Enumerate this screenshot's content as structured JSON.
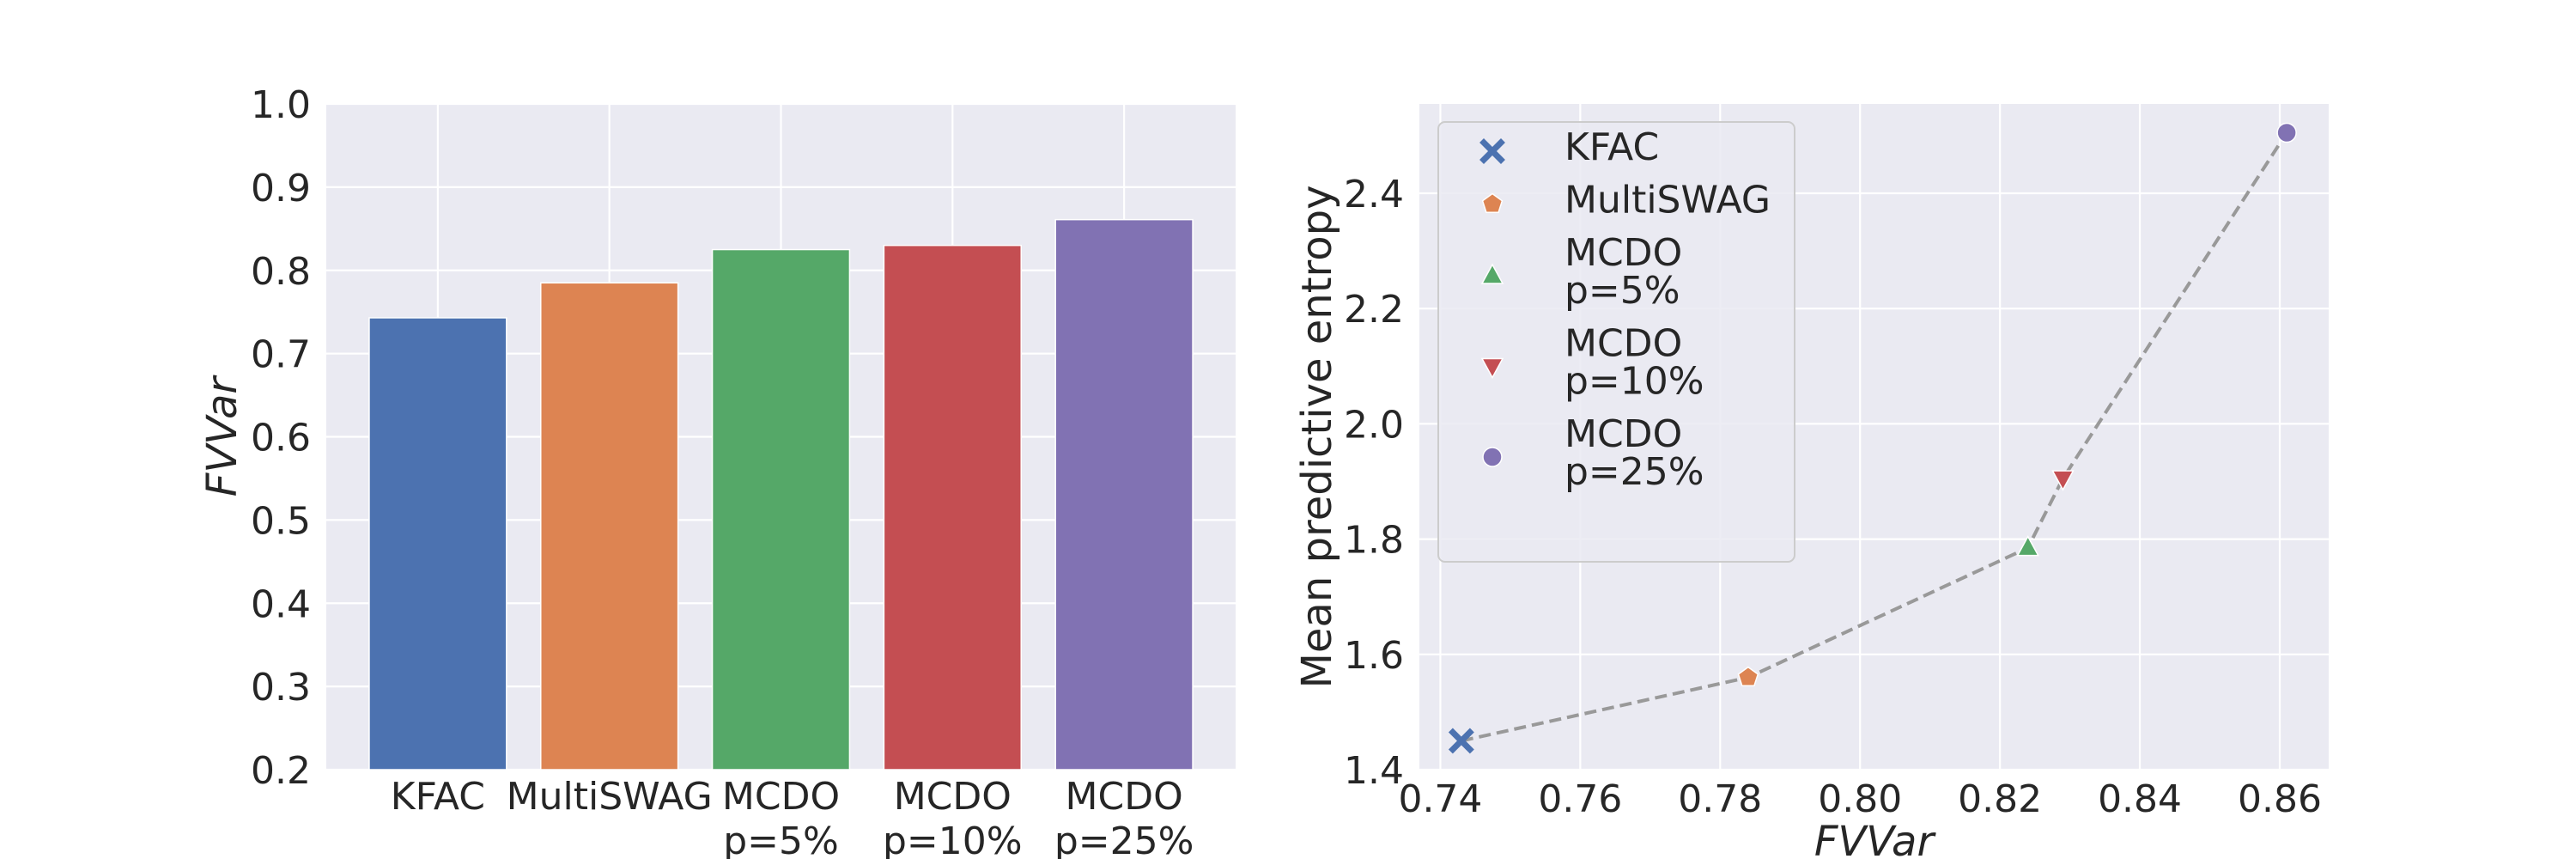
{
  "chart_data": [
    {
      "type": "bar",
      "xlabel": "",
      "ylabel": "FVVar",
      "ylim": [
        0.2,
        1.0
      ],
      "yticks": [
        "0.2",
        "0.3",
        "0.4",
        "0.5",
        "0.6",
        "0.7",
        "0.8",
        "0.9",
        "1.0"
      ],
      "grid": true,
      "categories": [
        [
          "KFAC"
        ],
        [
          "MultiSWAG"
        ],
        [
          "MCDO",
          "p=5%"
        ],
        [
          "MCDO",
          "p=10%"
        ],
        [
          "MCDO",
          "p=25%"
        ]
      ],
      "values": [
        0.743,
        0.785,
        0.825,
        0.83,
        0.861
      ],
      "colors": [
        "#4c72b0",
        "#dd8452",
        "#55a868",
        "#c44e52",
        "#8172b3"
      ]
    },
    {
      "type": "scatter",
      "xlabel": "FVVar",
      "ylabel": "Mean predictive entropy",
      "xlim": [
        0.737,
        0.867
      ],
      "ylim": [
        1.4,
        2.555
      ],
      "xticks": [
        "0.74",
        "0.76",
        "0.78",
        "0.80",
        "0.82",
        "0.84",
        "0.86"
      ],
      "yticks": [
        "1.4",
        "1.6",
        "1.8",
        "2.0",
        "2.2",
        "2.4"
      ],
      "grid": true,
      "legend_position": "upper-left",
      "connecting_line": {
        "style": "dashed",
        "color": "#999999"
      },
      "series": [
        {
          "name": [
            "KFAC"
          ],
          "x": 0.743,
          "y": 1.45,
          "marker": "x",
          "color": "#4c72b0"
        },
        {
          "name": [
            "MultiSWAG"
          ],
          "x": 0.784,
          "y": 1.56,
          "marker": "pentagon",
          "color": "#dd8452"
        },
        {
          "name": [
            "MCDO",
            "p=5%"
          ],
          "x": 0.824,
          "y": 1.785,
          "marker": "triangle-up",
          "color": "#55a868"
        },
        {
          "name": [
            "MCDO",
            "p=10%"
          ],
          "x": 0.829,
          "y": 1.905,
          "marker": "triangle-down",
          "color": "#c44e52"
        },
        {
          "name": [
            "MCDO",
            "p=25%"
          ],
          "x": 0.861,
          "y": 2.505,
          "marker": "circle",
          "color": "#8172b3"
        }
      ]
    }
  ]
}
